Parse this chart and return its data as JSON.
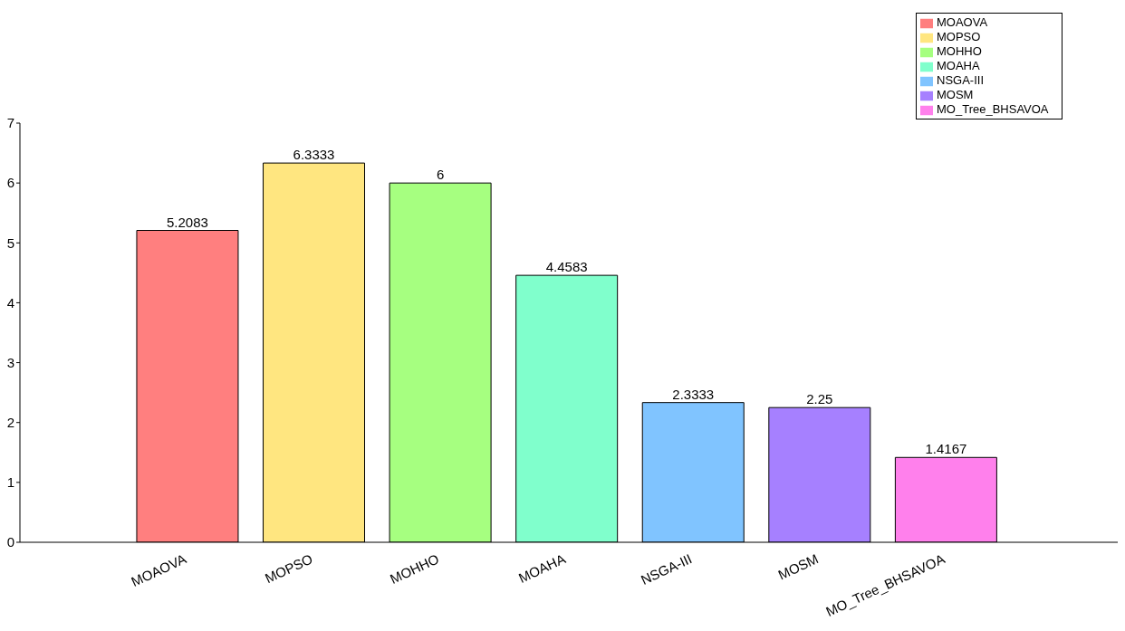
{
  "chart_data": {
    "type": "bar",
    "categories": [
      "MOAOVA",
      "MOPSO",
      "MOHHO",
      "MOAHA",
      "NSGA-III",
      "MOSM",
      "MO_Tree_BHSAVOA"
    ],
    "series": [
      {
        "name": "MOAOVA",
        "color": "#ff7f7f",
        "values": [
          5.2083,
          null,
          null,
          null,
          null,
          null,
          null
        ]
      },
      {
        "name": "MOPSO",
        "color": "#ffe680",
        "values": [
          null,
          6.3333,
          null,
          null,
          null,
          null,
          null
        ]
      },
      {
        "name": "MOHHO",
        "color": "#a6ff80",
        "values": [
          null,
          null,
          6,
          null,
          null,
          null,
          null
        ]
      },
      {
        "name": "MOAHA",
        "color": "#80ffcc",
        "values": [
          null,
          null,
          null,
          4.4583,
          null,
          null,
          null
        ]
      },
      {
        "name": "NSGA-III",
        "color": "#80c4ff",
        "values": [
          null,
          null,
          null,
          null,
          2.3333,
          null,
          null
        ]
      },
      {
        "name": "MOSM",
        "color": "#a680ff",
        "values": [
          null,
          null,
          null,
          null,
          null,
          2.25,
          null
        ]
      },
      {
        "name": "MO_Tree_BHSAVOA",
        "color": "#ff80ec",
        "values": [
          null,
          null,
          null,
          null,
          null,
          null,
          1.4167
        ]
      }
    ],
    "ylim": [
      0,
      7
    ],
    "yticks": [
      0,
      1,
      2,
      3,
      4,
      5,
      6,
      7
    ],
    "data_labels": true,
    "legend": "top right",
    "grid": false
  }
}
